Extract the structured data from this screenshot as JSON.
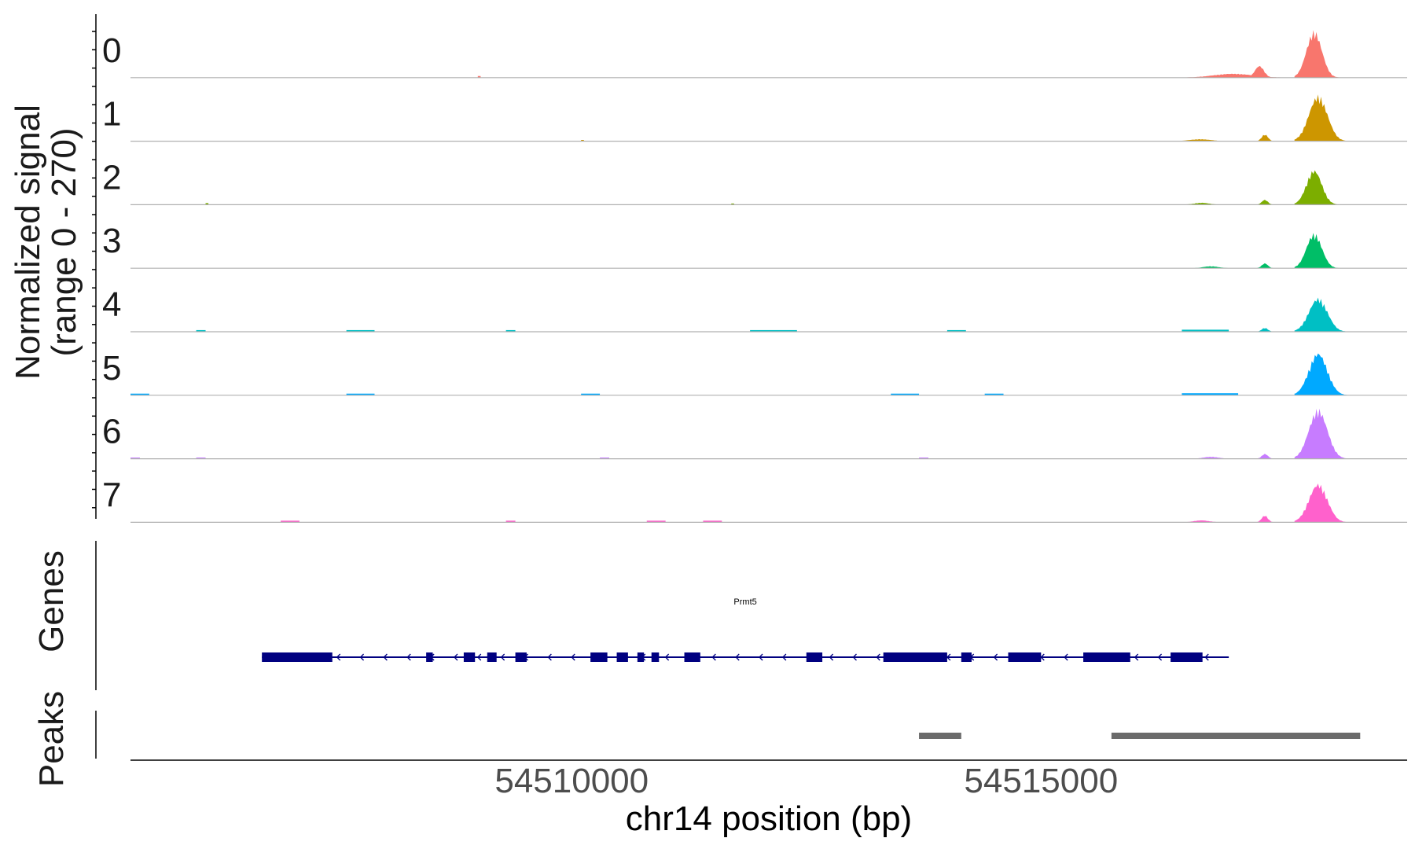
{
  "chart_data": {
    "type": "area",
    "title": "",
    "ylabel_line1": "Normalized signal",
    "ylabel_line2": "(range 0 - 270)",
    "ylim": [
      0,
      270
    ],
    "xlabel": "chr14 position (bp)",
    "xlim": [
      54505300,
      54518900
    ],
    "xticks": [
      54510000,
      54515000
    ],
    "xtick_labels": [
      "54510000",
      "54515000"
    ],
    "tracks": [
      {
        "name": "0",
        "color": "#F8766D",
        "small": [
          [
            54509000,
            54509030,
            8
          ]
        ],
        "peaks": [
          [
            54516500,
            54517800,
            20
          ],
          [
            54517200,
            54517500,
            60
          ],
          [
            54517700,
            54518200,
            235
          ]
        ]
      },
      {
        "name": "1",
        "color": "#CD9600",
        "small": [
          [
            54510100,
            54510130,
            6
          ]
        ],
        "peaks": [
          [
            54516400,
            54517100,
            10
          ],
          [
            54517300,
            54517500,
            35
          ],
          [
            54517700,
            54518300,
            230
          ]
        ]
      },
      {
        "name": "2",
        "color": "#7CAE00",
        "small": [
          [
            54506100,
            54506130,
            8
          ],
          [
            54511700,
            54511730,
            6
          ]
        ],
        "peaks": [
          [
            54516500,
            54517000,
            10
          ],
          [
            54517300,
            54517500,
            25
          ],
          [
            54517700,
            54518200,
            175
          ]
        ]
      },
      {
        "name": "3",
        "color": "#00BE67",
        "small": [],
        "peaks": [
          [
            54516600,
            54517100,
            10
          ],
          [
            54517300,
            54517500,
            25
          ],
          [
            54517700,
            54518200,
            175
          ]
        ]
      },
      {
        "name": "4",
        "color": "#00BFC4",
        "small": [
          [
            54506000,
            54506100,
            8
          ],
          [
            54507600,
            54507900,
            8
          ],
          [
            54509300,
            54509400,
            8
          ],
          [
            54511900,
            54512400,
            8
          ],
          [
            54514000,
            54514200,
            8
          ],
          [
            54516500,
            54517000,
            10
          ]
        ],
        "peaks": [
          [
            54517300,
            54517500,
            20
          ],
          [
            54517700,
            54518300,
            170
          ]
        ]
      },
      {
        "name": "5",
        "color": "#00A9FF",
        "small": [
          [
            54505300,
            54505500,
            8
          ],
          [
            54507600,
            54507900,
            8
          ],
          [
            54510100,
            54510300,
            8
          ],
          [
            54513400,
            54513700,
            8
          ],
          [
            54514400,
            54514600,
            8
          ],
          [
            54516500,
            54517100,
            10
          ]
        ],
        "peaks": [
          [
            54517700,
            54518300,
            215
          ]
        ]
      },
      {
        "name": "6",
        "color": "#C77CFF",
        "small": [
          [
            54505300,
            54505400,
            6
          ],
          [
            54506000,
            54506100,
            6
          ],
          [
            54510300,
            54510400,
            6
          ],
          [
            54513700,
            54513800,
            6
          ]
        ],
        "peaks": [
          [
            54516600,
            54517100,
            10
          ],
          [
            54517300,
            54517500,
            25
          ],
          [
            54517700,
            54518300,
            250
          ]
        ]
      },
      {
        "name": "7",
        "color": "#FF61CC",
        "small": [
          [
            54506900,
            54507100,
            8
          ],
          [
            54509300,
            54509400,
            8
          ],
          [
            54510800,
            54511000,
            8
          ],
          [
            54511400,
            54511600,
            8
          ]
        ],
        "peaks": [
          [
            54516500,
            54517000,
            10
          ],
          [
            54517300,
            54517500,
            35
          ],
          [
            54517700,
            54518300,
            195
          ]
        ]
      }
    ],
    "genes_label": "Genes",
    "peaks_label": "Peaks",
    "gene": {
      "name": "Prmt5",
      "strand": "-",
      "start": 54506700,
      "end": 54517000,
      "color": "#000080",
      "exons": [
        [
          54506700,
          54507450
        ],
        [
          54508450,
          54508520
        ],
        [
          54508850,
          54508970
        ],
        [
          54509100,
          54509200
        ],
        [
          54509400,
          54509520
        ],
        [
          54510200,
          54510380
        ],
        [
          54510480,
          54510600
        ],
        [
          54510700,
          54510770
        ],
        [
          54510850,
          54510930
        ],
        [
          54511200,
          54511370
        ],
        [
          54512500,
          54512670
        ],
        [
          54513320,
          54514000
        ],
        [
          54514150,
          54514260
        ],
        [
          54514650,
          54515000
        ],
        [
          54515450,
          54515950
        ],
        [
          54516380,
          54516720
        ]
      ]
    },
    "peaks": {
      "color": "#6b6b6b",
      "regions": [
        [
          54513700,
          54514150
        ],
        [
          54515750,
          54518400
        ]
      ]
    }
  }
}
